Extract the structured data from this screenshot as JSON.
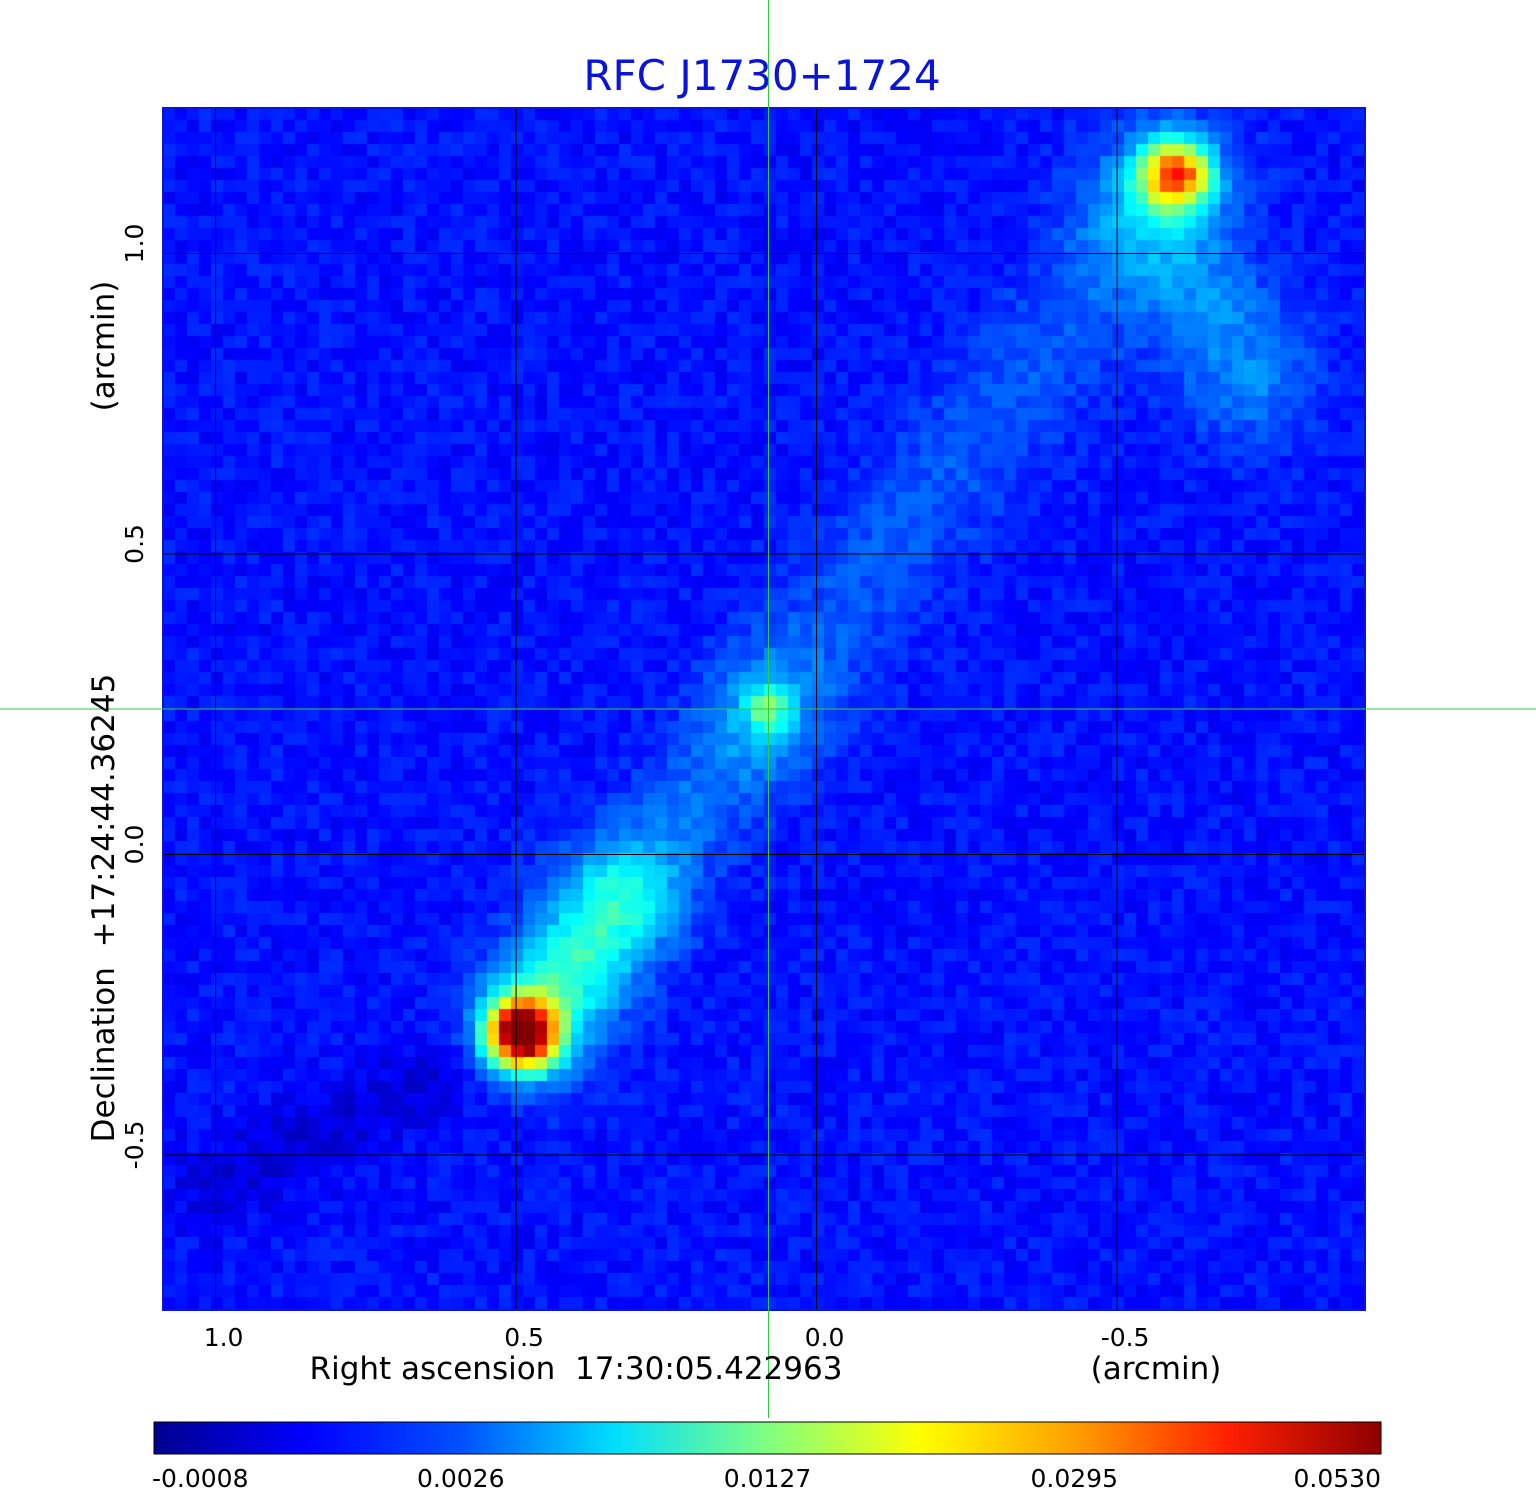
{
  "title": "RFC J1730+1724",
  "title_color": "#0a14d6",
  "x_axis": {
    "label_main": "Right ascension  17:30:05.422963",
    "label_unit": "(arcmin)",
    "ticks": [
      "1.0",
      "0.5",
      "0.0",
      "-0.5"
    ],
    "tick_values": [
      1.0,
      0.5,
      0.0,
      -0.5
    ],
    "range": [
      1.0875,
      -0.9125
    ]
  },
  "y_axis": {
    "label_main": "Declination  +17:24:44.36245",
    "label_unit": "(arcmin)",
    "ticks": [
      "1.0",
      "0.5",
      "0.0",
      "-0.5"
    ],
    "tick_values": [
      1.0,
      0.5,
      0.0,
      -0.5
    ],
    "range": [
      -0.758,
      1.242
    ]
  },
  "grid": true,
  "crosshair": {
    "ra_offset_arcmin": 0.08,
    "dec_offset_arcmin": 0.242,
    "color": "#2ecc40"
  },
  "colorbar": {
    "ticks": [
      "-0.0008",
      "0.0026",
      "0.0127",
      "0.0295",
      "0.0530"
    ],
    "colormap": "jet"
  },
  "sources": [
    {
      "name": "core",
      "ra_offset_arcmin": 0.08,
      "dec_offset_arcmin": 0.242,
      "level": 0.45
    },
    {
      "name": "south-east lobe hotspot",
      "ra_offset_arcmin": 0.49,
      "dec_offset_arcmin": -0.3,
      "level": 1.0
    },
    {
      "name": "north-west lobe hotspot",
      "ra_offset_arcmin": -0.6,
      "dec_offset_arcmin": 1.13,
      "level": 0.72
    }
  ]
}
